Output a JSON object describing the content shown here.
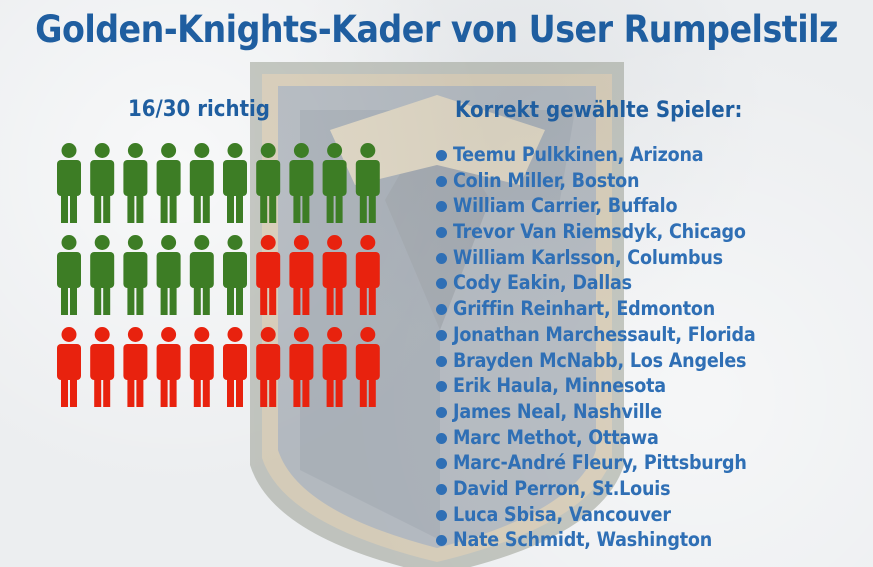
{
  "title": "Golden-Knights-Kader von User Rumpelstilz",
  "score": {
    "label": "16/30 richtig",
    "correct": 16,
    "total": 30
  },
  "colors": {
    "correct": "#3d7d25",
    "wrong": "#e8220e",
    "title": "#1f5ea0",
    "list_text": "#2f6fb5"
  },
  "list_heading": "Korrekt gewählte Spieler:",
  "players": [
    "Teemu Pulkkinen, Arizona",
    "Colin Miller, Boston",
    "William Carrier, Buffalo",
    "Trevor Van Riemsdyk, Chicago",
    "William Karlsson, Columbus",
    "Cody Eakin, Dallas",
    "Griffin Reinhart, Edmonton",
    "Jonathan Marchessault, Florida",
    "Brayden McNabb, Los Angeles",
    "Erik Haula, Minnesota",
    "James Neal, Nashville",
    "Marc Methot, Ottawa",
    "Marc-André Fleury, Pittsburgh",
    "David Perron, St.Louis",
    "Luca Sbisa, Vancouver",
    "Nate Schmidt, Washington"
  ],
  "background_icon": "golden-knights-helmet-logo"
}
